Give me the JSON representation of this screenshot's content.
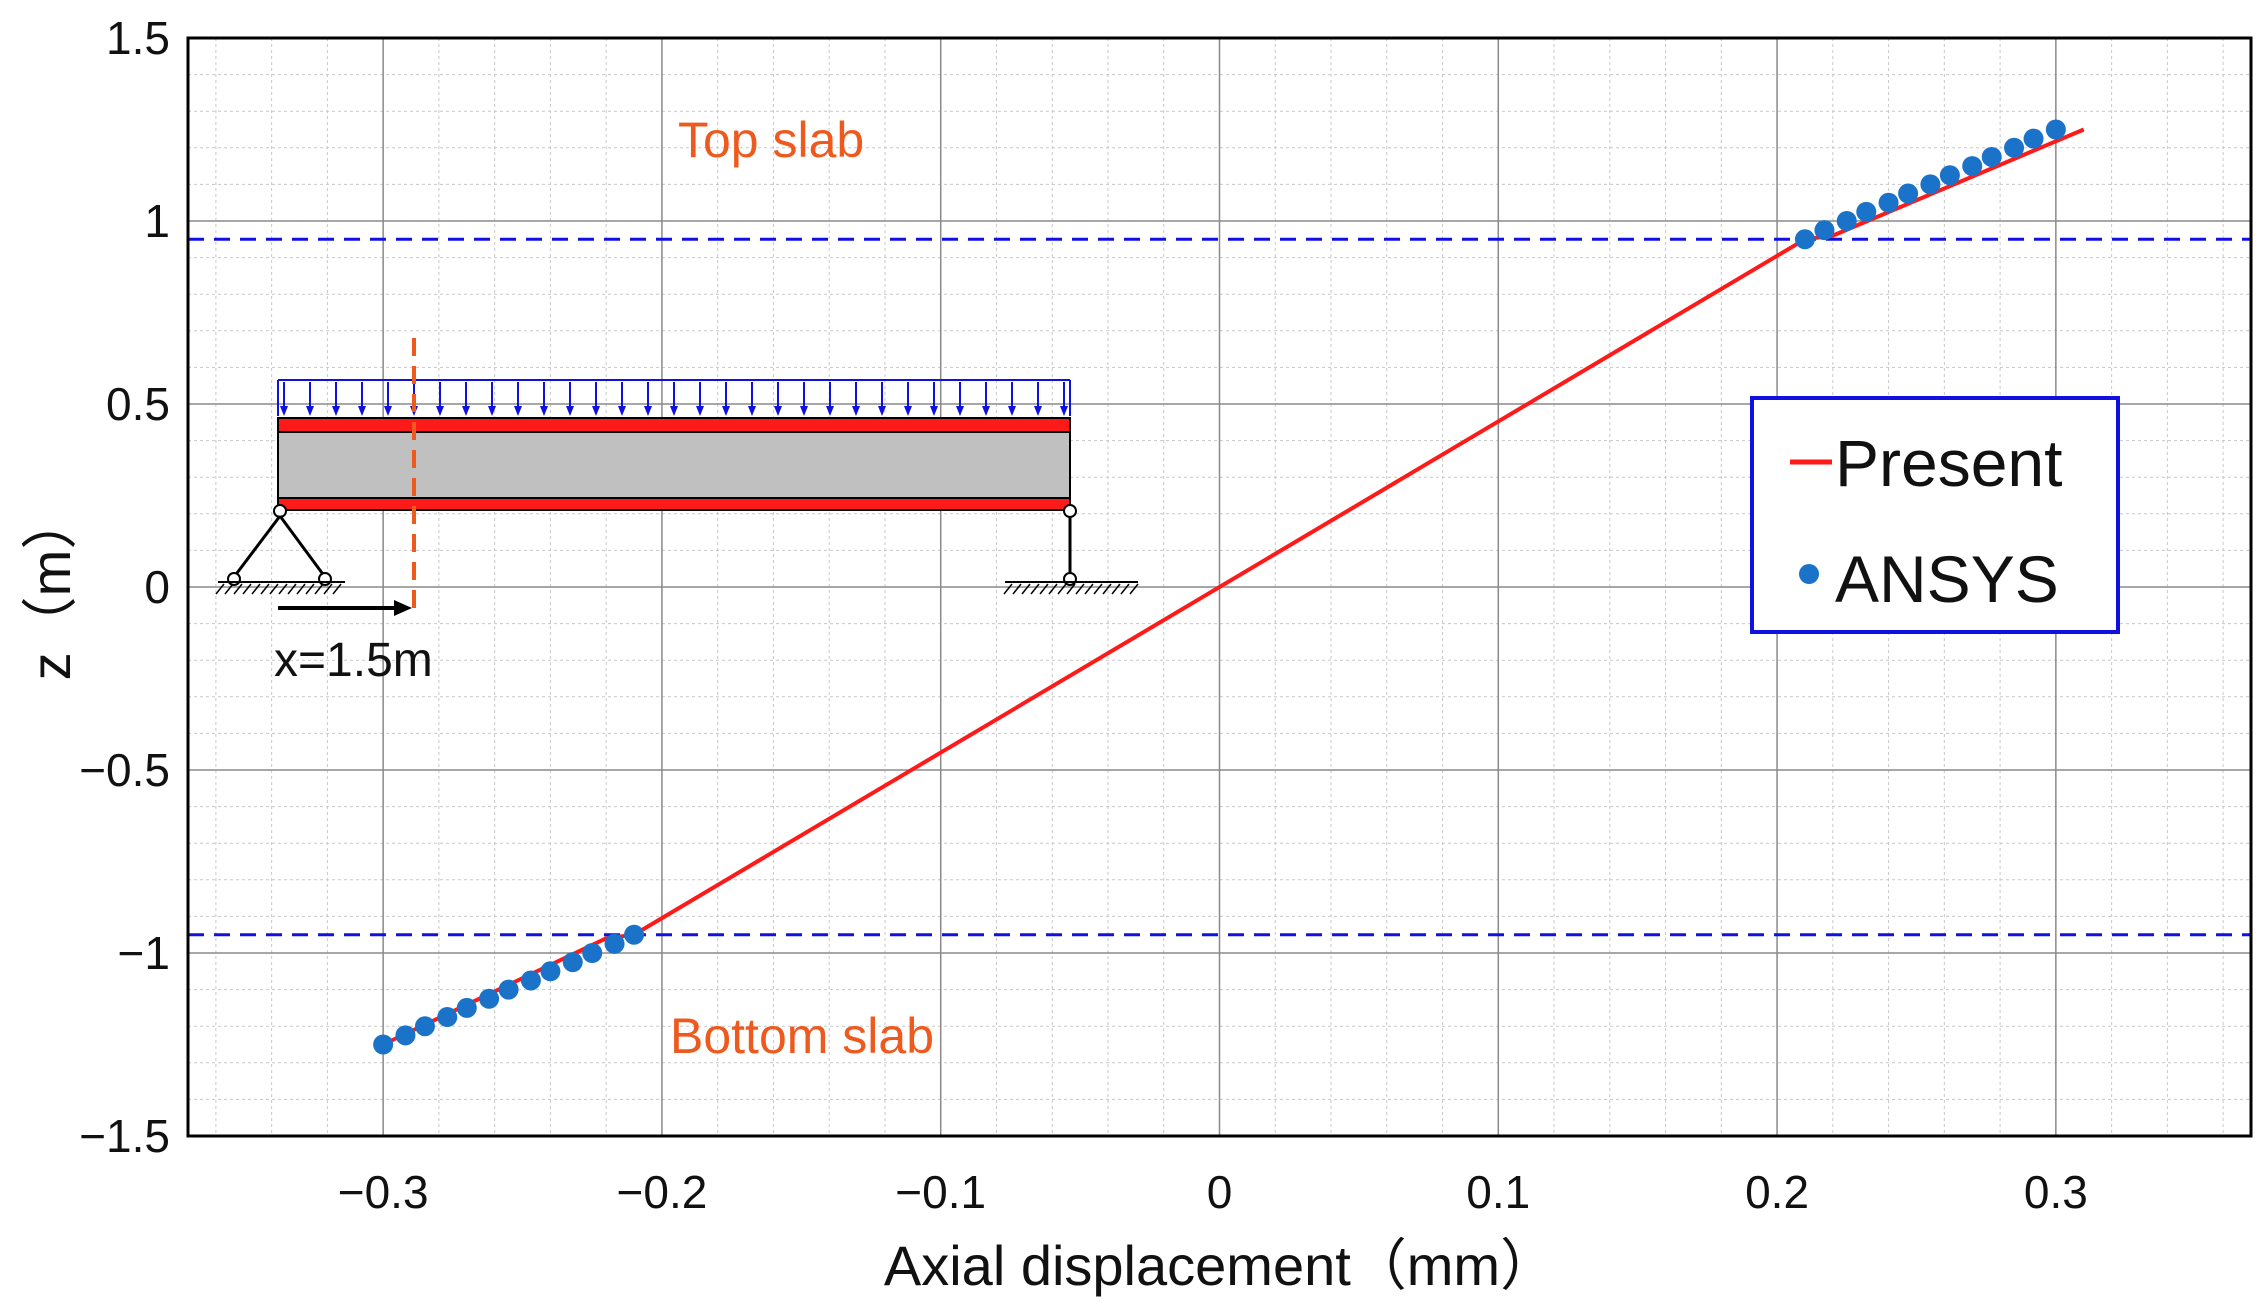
{
  "chart_data": {
    "type": "line",
    "xlabel": "Axial displacement（mm）",
    "ylabel": "z（m）",
    "xlim": [
      -0.37,
      0.37
    ],
    "ylim": [
      -1.5,
      1.5
    ],
    "x_ticks": [
      -0.3,
      -0.2,
      -0.1,
      0,
      0.1,
      0.2,
      0.3
    ],
    "x_tick_labels": [
      "−0.3",
      "−0.2",
      "−0.1",
      "0",
      "0.1",
      "0.2",
      "0.3"
    ],
    "y_ticks": [
      -1.5,
      -1,
      -0.5,
      0,
      0.5,
      1,
      1.5
    ],
    "y_tick_labels": [
      "−1.5",
      "−1",
      "−0.5",
      "0",
      "0.5",
      "1",
      "1.5"
    ],
    "grid": true,
    "minor_grid": true,
    "legend_position": "right",
    "series": [
      {
        "name": "Present",
        "style": "line",
        "color": "#ff1a1a",
        "x": [
          -0.3,
          -0.22,
          -0.21,
          0.21,
          0.22,
          0.31
        ],
        "y": [
          -1.25,
          -0.96,
          -0.95,
          0.95,
          0.96,
          1.25
        ]
      },
      {
        "name": "ANSYS",
        "style": "markers",
        "color": "#1a73c9",
        "x": [
          -0.3,
          -0.292,
          -0.285,
          -0.277,
          -0.27,
          -0.262,
          -0.255,
          -0.247,
          -0.24,
          -0.232,
          -0.225,
          -0.217,
          -0.21,
          0.21,
          0.217,
          0.225,
          0.232,
          0.24,
          0.247,
          0.255,
          0.262,
          0.27,
          0.277,
          0.285,
          0.292,
          0.3
        ],
        "y": [
          -1.25,
          -1.225,
          -1.2,
          -1.175,
          -1.15,
          -1.125,
          -1.1,
          -1.075,
          -1.05,
          -1.025,
          -1.0,
          -0.975,
          -0.95,
          0.95,
          0.975,
          1.0,
          1.025,
          1.05,
          1.075,
          1.1,
          1.125,
          1.15,
          1.175,
          1.2,
          1.225,
          1.25
        ]
      }
    ],
    "reference_lines": [
      {
        "axis": "y",
        "value": 0.95,
        "style": "dashed",
        "color": "#1010e0"
      },
      {
        "axis": "y",
        "value": -0.95,
        "style": "dashed",
        "color": "#1010e0"
      }
    ],
    "annotations": [
      {
        "text": "Top slab",
        "x": -0.19,
        "y": 1.2
      },
      {
        "text": "Bottom slab",
        "x": -0.2,
        "y": -1.23
      }
    ],
    "inset": {
      "label": "x=1.5m",
      "load_color": "#1010e0",
      "slab_color": "#ff1a1a",
      "core_color": "#c0c0c0",
      "section_line_color": "#ee5a1e"
    }
  }
}
